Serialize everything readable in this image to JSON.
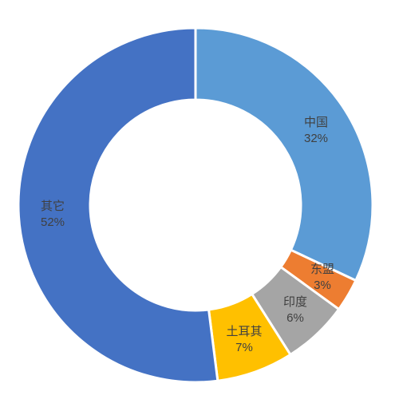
{
  "chart_data": {
    "type": "pie",
    "subtype": "donut",
    "categories": [
      "中国",
      "东盟",
      "印度",
      "土耳其",
      "其它"
    ],
    "values": [
      32,
      3,
      6,
      7,
      52
    ],
    "value_labels": [
      "32%",
      "3%",
      "6%",
      "7%",
      "52%"
    ],
    "colors": [
      "#5b9bd5",
      "#ed7d31",
      "#a5a5a5",
      "#ffc000",
      "#4472c4"
    ],
    "title": "",
    "legend": "none",
    "start_angle_deg": 0,
    "direction": "clockwise"
  }
}
